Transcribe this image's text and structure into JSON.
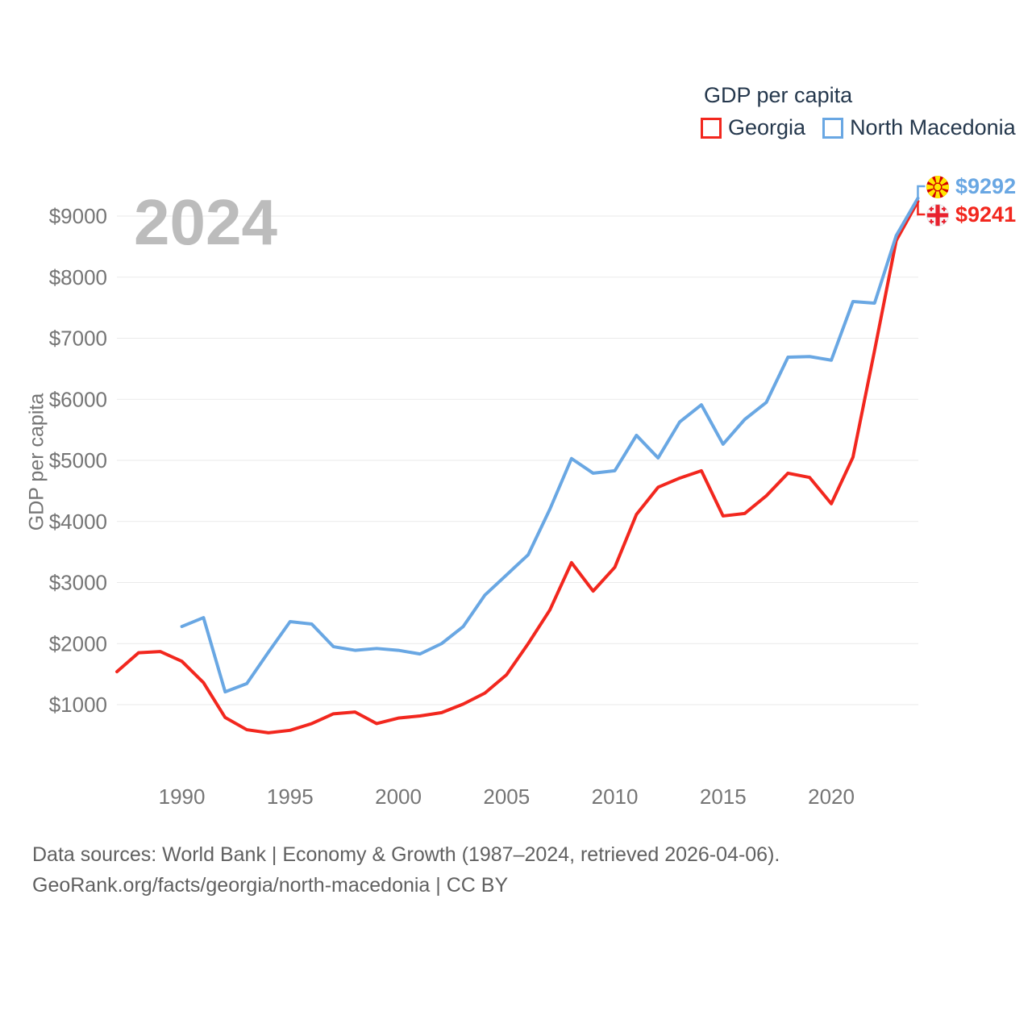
{
  "legend": {
    "title": "GDP per capita",
    "items": [
      {
        "label": "Georgia",
        "color": "#f2271e"
      },
      {
        "label": "North Macedonia",
        "color": "#69a7e3"
      }
    ]
  },
  "watermark": "2024",
  "end_labels": [
    {
      "country": "North Macedonia",
      "value": "$9292",
      "color": "#69a7e3"
    },
    {
      "country": "Georgia",
      "value": "$9241",
      "color": "#f2271e"
    }
  ],
  "y_axis": {
    "title": "GDP per capita",
    "ticks": [
      {
        "value": 1000,
        "label": "$1000"
      },
      {
        "value": 2000,
        "label": "$2000"
      },
      {
        "value": 3000,
        "label": "$3000"
      },
      {
        "value": 4000,
        "label": "$4000"
      },
      {
        "value": 5000,
        "label": "$5000"
      },
      {
        "value": 6000,
        "label": "$6000"
      },
      {
        "value": 7000,
        "label": "$7000"
      },
      {
        "value": 8000,
        "label": "$8000"
      },
      {
        "value": 9000,
        "label": "$9000"
      }
    ]
  },
  "x_axis": {
    "tick_years": [
      1990,
      1995,
      2000,
      2005,
      2010,
      2015,
      2020
    ]
  },
  "footer": {
    "line1": "Data sources: World Bank | Economy & Growth (1987–2024, retrieved 2026-04-06).",
    "line2": "GeoRank.org/facts/georgia/north-macedonia | CC BY"
  },
  "chart_data": {
    "type": "line",
    "title": "GDP per capita",
    "ylabel": "GDP per capita",
    "x_range": [
      1987,
      2024
    ],
    "ylim": [
      0,
      9500
    ],
    "grid": "horizontal",
    "legend_position": "top-right",
    "series": [
      {
        "name": "Georgia",
        "color": "#f2271e",
        "start_year": 1987,
        "values": [
          1540,
          1850,
          1870,
          1710,
          1360,
          790,
          590,
          540,
          580,
          690,
          850,
          880,
          690,
          780,
          815,
          870,
          1010,
          1190,
          1490,
          2000,
          2550,
          3325,
          2860,
          3250,
          4115,
          4560,
          4710,
          4830,
          4090,
          4130,
          4420,
          4790,
          4720,
          4290,
          5050,
          6800,
          8600,
          9241
        ]
      },
      {
        "name": "North Macedonia",
        "color": "#69a7e3",
        "start_year": 1990,
        "values": [
          2280,
          2425,
          1210,
          1345,
          1860,
          2360,
          2320,
          1950,
          1890,
          1920,
          1890,
          1830,
          2000,
          2280,
          2795,
          3125,
          3455,
          4200,
          5030,
          4790,
          4830,
          5410,
          5040,
          5630,
          5910,
          5265,
          5670,
          5950,
          6690,
          6700,
          6640,
          7600,
          7575,
          8680,
          9292
        ]
      }
    ],
    "end_values": {
      "Georgia": 9241,
      "North Macedonia": 9292
    }
  }
}
